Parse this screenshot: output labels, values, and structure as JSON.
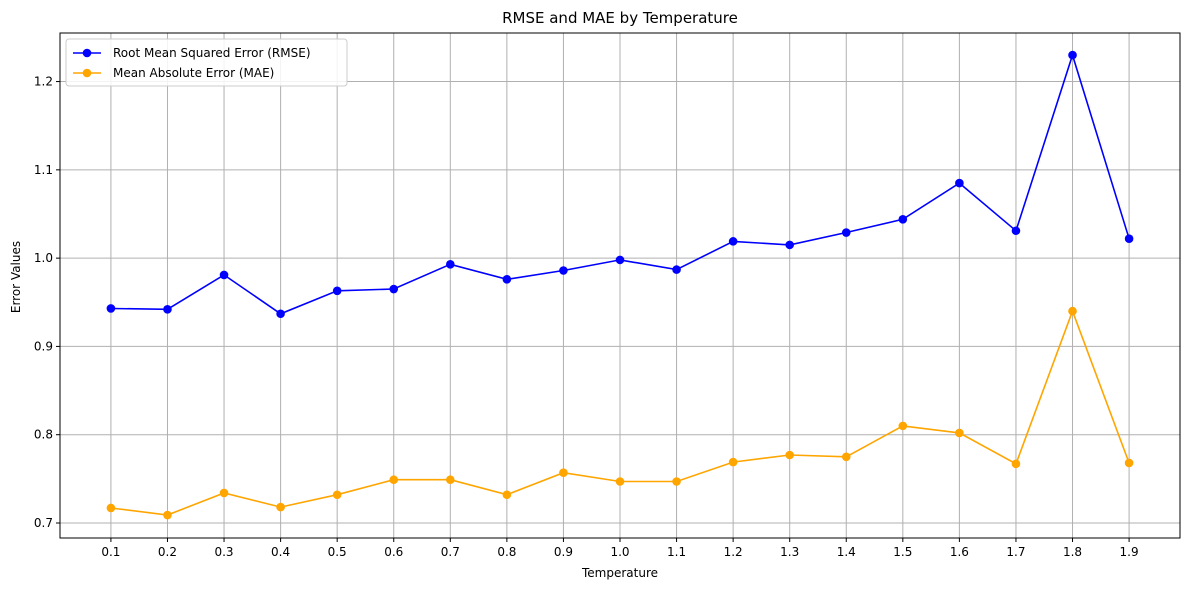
{
  "chart_data": {
    "type": "line",
    "title": "RMSE and MAE by Temperature",
    "xlabel": "Temperature",
    "ylabel": "Error Values",
    "x": [
      0.1,
      0.2,
      0.3,
      0.4,
      0.5,
      0.6,
      0.7,
      0.8,
      0.9,
      1.0,
      1.1,
      1.2,
      1.3,
      1.4,
      1.5,
      1.6,
      1.7,
      1.8,
      1.9
    ],
    "x_tick_labels": [
      "0.1",
      "0.2",
      "0.3",
      "0.4",
      "0.5",
      "0.6",
      "0.7",
      "0.8",
      "0.9",
      "1.0",
      "1.1",
      "1.2",
      "1.3",
      "1.4",
      "1.5",
      "1.6",
      "1.7",
      "1.8",
      "1.9"
    ],
    "y_ticks": [
      0.7,
      0.8,
      0.9,
      1.0,
      1.1,
      1.2
    ],
    "y_tick_labels": [
      "0.7",
      "0.8",
      "0.9",
      "1.0",
      "1.1",
      "1.2"
    ],
    "xlim": [
      0.01,
      1.99
    ],
    "ylim": [
      0.683,
      1.255
    ],
    "grid": true,
    "legend_position": "upper-left",
    "series": [
      {
        "name": "Root Mean Squared Error (RMSE)",
        "color": "#0000ff",
        "values": [
          0.943,
          0.942,
          0.981,
          0.937,
          0.963,
          0.965,
          0.993,
          0.976,
          0.986,
          0.998,
          0.987,
          1.019,
          1.015,
          1.029,
          1.044,
          1.085,
          1.031,
          1.23,
          1.022
        ]
      },
      {
        "name": "Mean Absolute Error (MAE)",
        "color": "#ffa500",
        "values": [
          0.717,
          0.709,
          0.734,
          0.718,
          0.732,
          0.749,
          0.749,
          0.732,
          0.757,
          0.747,
          0.747,
          0.769,
          0.777,
          0.775,
          0.81,
          0.802,
          0.767,
          0.94,
          0.768
        ]
      }
    ]
  }
}
